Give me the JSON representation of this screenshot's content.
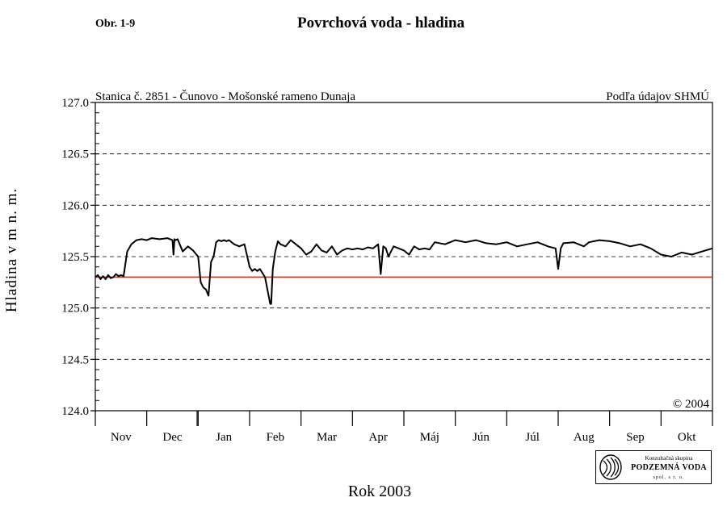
{
  "figure": {
    "label": "Obr. 1-9",
    "title": "Povrchová voda - hladina"
  },
  "chart_data": {
    "type": "line",
    "title": "Stanica č. 2851 - Čunovo - Mošonské rameno Dunaja",
    "source_note": "Podľa údajov SHMÚ",
    "copyright": "© 2004",
    "xlabel": "Rok 2003",
    "ylabel": "Hladina v m n. m.",
    "ylim": [
      124.0,
      127.0
    ],
    "yticks": [
      "124.0",
      "124.5",
      "125.0",
      "125.5",
      "126.0",
      "126.5",
      "127.0"
    ],
    "grid": "horizontal dashed",
    "months": [
      "Nov",
      "Dec",
      "Jan",
      "Feb",
      "Mar",
      "Apr",
      "Máj",
      "Jún",
      "Júl",
      "Aug",
      "Sep",
      "Okt"
    ],
    "reference_line": {
      "value": 125.3,
      "color": "#e0281e"
    },
    "series": [
      {
        "color": "#000000",
        "x": [
          0.0,
          0.05,
          0.1,
          0.15,
          0.2,
          0.25,
          0.3,
          0.35,
          0.4,
          0.45,
          0.5,
          0.55,
          0.62,
          0.7,
          0.8,
          0.9,
          1.0,
          1.1,
          1.25,
          1.4,
          1.5,
          1.52,
          1.54,
          1.56,
          1.6,
          1.7,
          1.8,
          1.85,
          1.9,
          2.0,
          2.05,
          2.1,
          2.15,
          2.2,
          2.25,
          2.3,
          2.35,
          2.4,
          2.45,
          2.5,
          2.55,
          2.6,
          2.7,
          2.8,
          2.9,
          3.0,
          3.05,
          3.1,
          3.15,
          3.2,
          3.3,
          3.4,
          3.42,
          3.45,
          3.5,
          3.55,
          3.6,
          3.7,
          3.8,
          4.0,
          4.1,
          4.2,
          4.3,
          4.4,
          4.5,
          4.6,
          4.7,
          4.8,
          4.9,
          5.0,
          5.1,
          5.2,
          5.3,
          5.4,
          5.5,
          5.55,
          5.6,
          5.65,
          5.7,
          5.75,
          5.8,
          5.9,
          6.0,
          6.1,
          6.2,
          6.3,
          6.4,
          6.5,
          6.6,
          6.8,
          7.0,
          7.2,
          7.4,
          7.6,
          7.8,
          8.0,
          8.2,
          8.4,
          8.6,
          8.8,
          8.95,
          9.0,
          9.05,
          9.1,
          9.3,
          9.5,
          9.6,
          9.8,
          10.0,
          10.2,
          10.4,
          10.6,
          10.8,
          11.0,
          11.2,
          11.4,
          11.6,
          11.8,
          12.0
        ],
        "y": [
          125.3,
          125.32,
          125.28,
          125.31,
          125.28,
          125.32,
          125.29,
          125.3,
          125.33,
          125.31,
          125.32,
          125.31,
          125.55,
          125.62,
          125.66,
          125.67,
          125.66,
          125.68,
          125.67,
          125.68,
          125.66,
          125.52,
          125.67,
          125.66,
          125.67,
          125.55,
          125.6,
          125.58,
          125.56,
          125.5,
          125.25,
          125.2,
          125.18,
          125.12,
          125.45,
          125.5,
          125.64,
          125.66,
          125.65,
          125.66,
          125.65,
          125.66,
          125.62,
          125.6,
          125.62,
          125.4,
          125.36,
          125.38,
          125.36,
          125.38,
          125.3,
          125.04,
          125.04,
          125.38,
          125.55,
          125.65,
          125.62,
          125.6,
          125.66,
          125.58,
          125.52,
          125.55,
          125.62,
          125.56,
          125.54,
          125.6,
          125.52,
          125.56,
          125.58,
          125.57,
          125.58,
          125.57,
          125.59,
          125.58,
          125.62,
          125.33,
          125.6,
          125.58,
          125.5,
          125.55,
          125.6,
          125.58,
          125.56,
          125.52,
          125.6,
          125.57,
          125.58,
          125.57,
          125.64,
          125.62,
          125.66,
          125.64,
          125.66,
          125.63,
          125.62,
          125.64,
          125.6,
          125.62,
          125.64,
          125.6,
          125.58,
          125.38,
          125.58,
          125.63,
          125.64,
          125.6,
          125.64,
          125.66,
          125.65,
          125.63,
          125.6,
          125.62,
          125.58,
          125.52,
          125.5,
          125.54,
          125.52,
          125.55,
          125.58
        ]
      }
    ]
  },
  "logo": {
    "line1": "Konzultačná skupina",
    "line2": "PODZEMNÁ VODA",
    "line3": "spol. s r. o."
  }
}
